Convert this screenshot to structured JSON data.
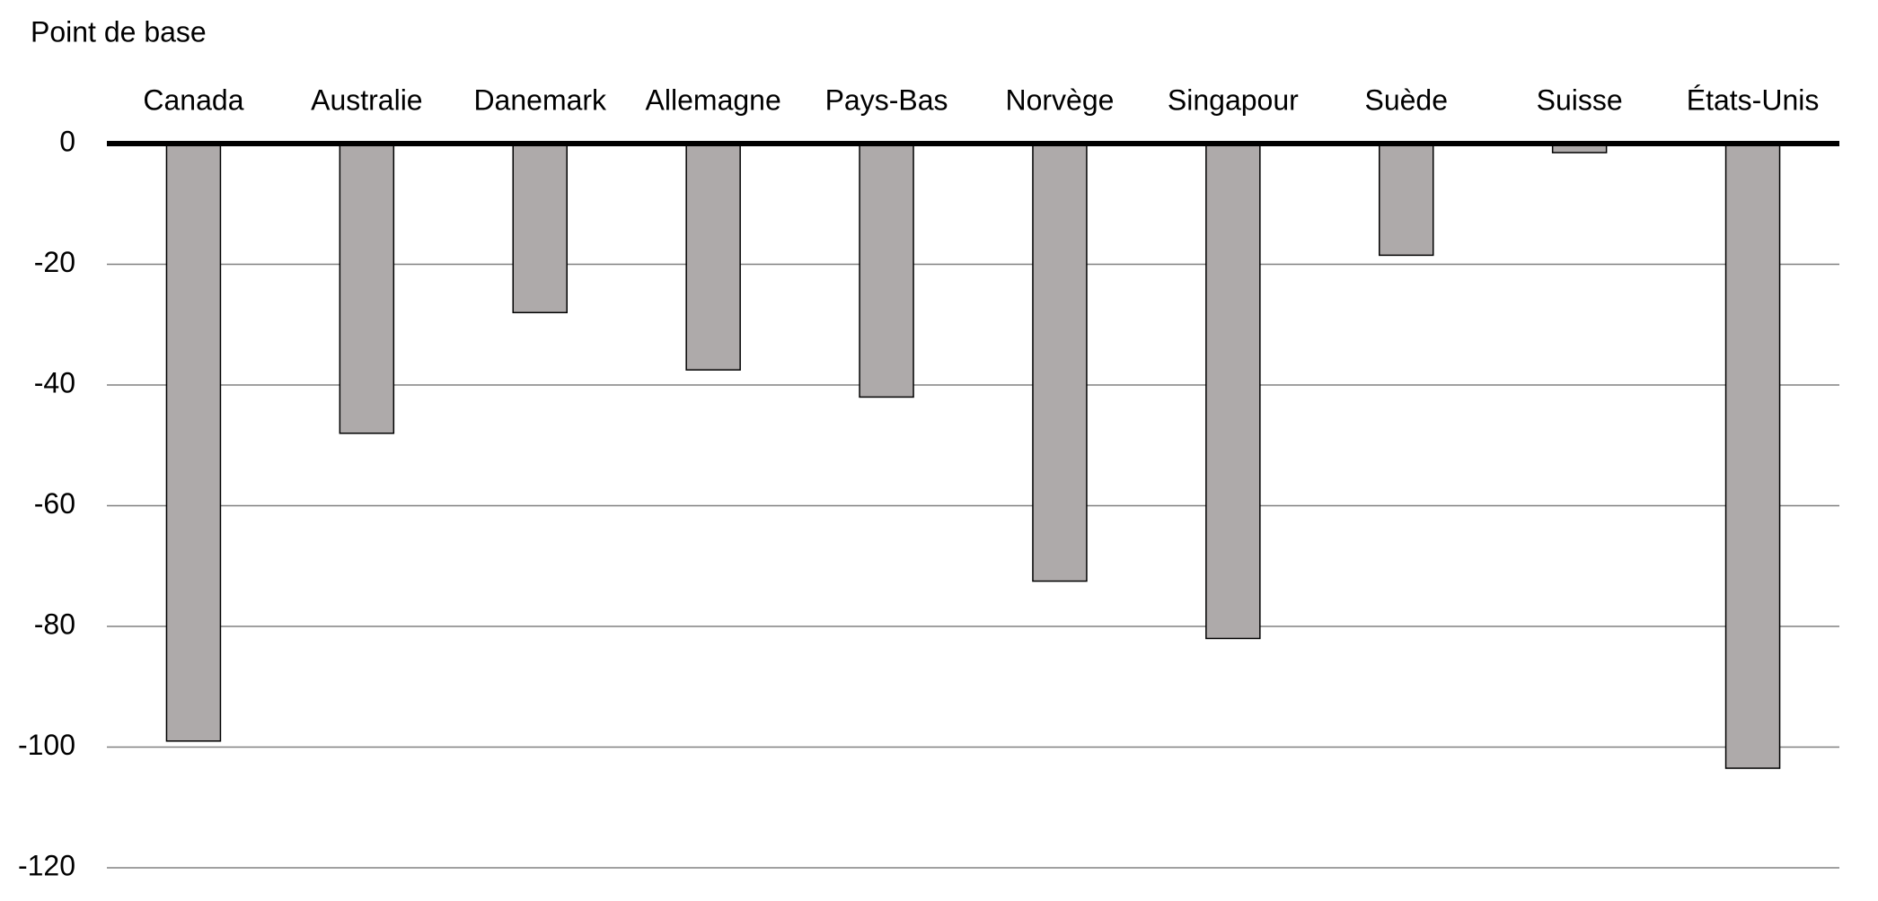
{
  "chart_data": {
    "type": "bar",
    "y_axis_title": "Point de base",
    "categories": [
      "Canada",
      "Australie",
      "Danemark",
      "Allemagne",
      "Pays-Bas",
      "Norvège",
      "Singapour",
      "Suède",
      "Suisse",
      "États-Unis"
    ],
    "values": [
      -99,
      -48,
      -28,
      -37.5,
      -42,
      -72.5,
      -82,
      -18.5,
      -1.5,
      -103.5
    ],
    "color": "#aeaaaa",
    "ylim": [
      -120,
      0
    ],
    "yticks": [
      0,
      -20,
      -40,
      -60,
      -80,
      -100,
      -120
    ],
    "grid": true
  }
}
